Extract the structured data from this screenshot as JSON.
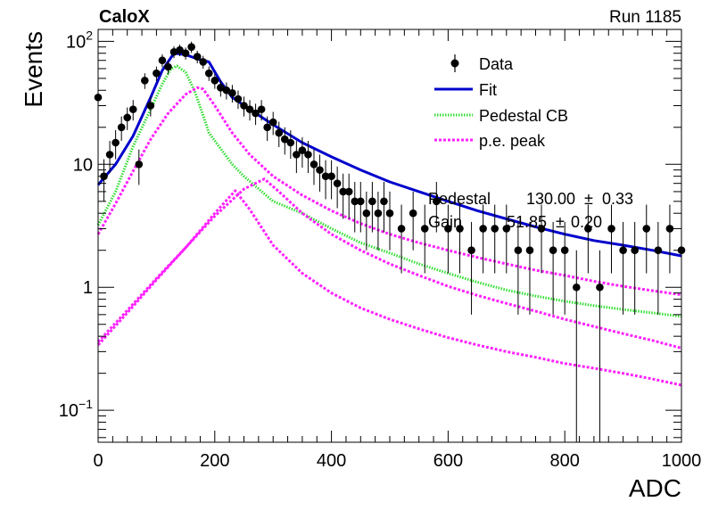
{
  "header": {
    "left": "CaloX",
    "right": "Run 1185"
  },
  "chart_data": {
    "type": "scatter",
    "xlabel": "ADC",
    "ylabel": "Events",
    "xlim": [
      0,
      1000
    ],
    "ylim": [
      0.055,
      125
    ],
    "yscale": "log",
    "x_ticks": [
      "0",
      "200",
      "400",
      "600",
      "800",
      "1000"
    ],
    "y_ticks": [
      {
        "value": 0.1,
        "base": "10",
        "exp": "−1"
      },
      {
        "value": 1,
        "label": "1"
      },
      {
        "value": 10,
        "label": "10"
      },
      {
        "value": 100,
        "base": "10",
        "exp": "2"
      }
    ],
    "legend": [
      {
        "label": "Data",
        "style": "marker",
        "color": "#000000"
      },
      {
        "label": "Fit",
        "style": "solid",
        "color": "#0000cc"
      },
      {
        "label": "Pedestal CB",
        "style": "dotted",
        "color": "#33dd33"
      },
      {
        "label": "p.e. peak",
        "style": "dashed",
        "color": "#ff22ff"
      }
    ],
    "fit_params": [
      {
        "name": "Pedestal",
        "value": "130.00",
        "error": "0.33"
      },
      {
        "name": "Gain",
        "value": "51.85",
        "error": "0.20"
      }
    ],
    "series": [
      {
        "name": "Data",
        "x": [
          0,
          10,
          20,
          30,
          40,
          50,
          60,
          70,
          80,
          90,
          100,
          110,
          120,
          130,
          140,
          150,
          160,
          170,
          180,
          190,
          200,
          210,
          220,
          230,
          240,
          250,
          260,
          270,
          280,
          290,
          300,
          310,
          320,
          330,
          340,
          350,
          360,
          370,
          380,
          390,
          400,
          410,
          420,
          430,
          440,
          450,
          460,
          470,
          480,
          490,
          500,
          520,
          540,
          560,
          580,
          600,
          620,
          640,
          660,
          680,
          700,
          720,
          740,
          760,
          780,
          800,
          820,
          840,
          860,
          880,
          900,
          920,
          940,
          960,
          980,
          1000
        ],
        "y": [
          35,
          8,
          12,
          15,
          20,
          24,
          28,
          10,
          48,
          30,
          55,
          70,
          62,
          82,
          85,
          80,
          90,
          75,
          68,
          55,
          48,
          42,
          40,
          38,
          34,
          30,
          28,
          26,
          28,
          20,
          22,
          18,
          16,
          15,
          12,
          13,
          12,
          10,
          9,
          8,
          8,
          7,
          6,
          6,
          5,
          5,
          4,
          5,
          4,
          5,
          4,
          3,
          4,
          3,
          5,
          3,
          3,
          2,
          3,
          3,
          3,
          2,
          2,
          3,
          2,
          2,
          1,
          3,
          1,
          3,
          2,
          2,
          3,
          2,
          3,
          2
        ],
        "yerr": [
          6,
          3,
          3.5,
          4,
          4.5,
          5,
          5.3,
          3.2,
          7,
          5.5,
          7.4,
          8.4,
          7.9,
          9,
          9.2,
          9,
          9.5,
          8.7,
          8.2,
          7.4,
          6.9,
          6.5,
          6.3,
          6.2,
          5.8,
          5.5,
          5.3,
          5.1,
          5.3,
          4.5,
          4.7,
          4.2,
          4,
          3.9,
          3.5,
          3.6,
          3.5,
          3.2,
          3,
          2.8,
          2.8,
          2.6,
          2.4,
          2.4,
          2.2,
          2.2,
          2,
          2.2,
          2,
          2.2,
          2,
          1.7,
          2,
          1.7,
          2.2,
          1.7,
          1.7,
          1.4,
          1.7,
          1.7,
          1.7,
          1.4,
          1.4,
          1.7,
          1.4,
          1.4,
          1,
          1.7,
          1,
          1.7,
          1.4,
          1.4,
          1.7,
          1.4,
          1.7,
          1.4
        ]
      },
      {
        "name": "Fit",
        "x": [
          0,
          30,
          60,
          90,
          110,
          130,
          150,
          170,
          190,
          210,
          230,
          260,
          300,
          350,
          400,
          450,
          500,
          550,
          600,
          650,
          700,
          750,
          800,
          850,
          900,
          950,
          1000
        ],
        "y": [
          6.8,
          10,
          17,
          35,
          58,
          80,
          78,
          72,
          68,
          47,
          35,
          28,
          21,
          15,
          11.5,
          9,
          7.2,
          6,
          5,
          4.2,
          3.6,
          3.1,
          2.7,
          2.4,
          2.2,
          2.0,
          1.8
        ]
      },
      {
        "name": "Pedestal CB",
        "x": [
          0,
          30,
          60,
          90,
          110,
          125,
          135,
          150,
          165,
          180,
          190,
          230,
          250,
          300,
          350,
          400,
          450,
          500,
          550,
          600,
          650,
          700,
          750,
          800,
          850,
          900,
          950,
          1000
        ],
        "y": [
          3.2,
          6,
          14,
          28,
          45,
          60,
          63,
          56,
          40,
          25,
          18,
          10,
          8,
          5,
          4,
          3,
          2.3,
          1.9,
          1.55,
          1.3,
          1.1,
          0.95,
          0.85,
          0.77,
          0.71,
          0.66,
          0.62,
          0.58
        ]
      },
      {
        "name": "p.e. peak",
        "x": [
          0,
          30,
          60,
          90,
          120,
          150,
          170,
          180,
          200,
          230,
          260,
          300,
          350,
          400,
          450,
          500,
          550,
          600,
          650,
          700,
          750,
          800,
          850,
          900,
          950,
          1000
        ],
        "y": [
          2.7,
          4.8,
          8.8,
          16,
          26,
          37,
          42,
          41,
          30,
          18,
          12,
          8,
          5.6,
          4.2,
          3.3,
          2.7,
          2.3,
          2.0,
          1.75,
          1.55,
          1.38,
          1.25,
          1.12,
          1.02,
          0.94,
          0.87
        ]
      },
      {
        "name": "p.e. peak",
        "x": [
          0,
          50,
          100,
          150,
          200,
          235,
          260,
          300,
          350,
          400,
          450,
          500,
          550,
          600,
          650,
          700,
          750,
          800,
          850,
          900,
          950,
          1000
        ],
        "y": [
          0.34,
          0.62,
          1.15,
          2.1,
          4.0,
          6.1,
          4.3,
          2.2,
          1.3,
          0.9,
          0.68,
          0.55,
          0.46,
          0.39,
          0.34,
          0.3,
          0.27,
          0.24,
          0.22,
          0.2,
          0.18,
          0.16
        ]
      },
      {
        "name": "p.e. peak",
        "x": [
          0,
          50,
          100,
          150,
          200,
          250,
          285,
          310,
          350,
          400,
          450,
          500,
          550,
          600,
          650,
          700,
          750,
          800,
          850,
          900,
          950,
          1000
        ],
        "y": [
          0.36,
          0.65,
          1.18,
          2.1,
          3.8,
          6.3,
          7.6,
          6,
          4.0,
          2.7,
          2.0,
          1.55,
          1.25,
          1.02,
          0.86,
          0.74,
          0.64,
          0.55,
          0.48,
          0.42,
          0.37,
          0.32
        ]
      }
    ]
  }
}
